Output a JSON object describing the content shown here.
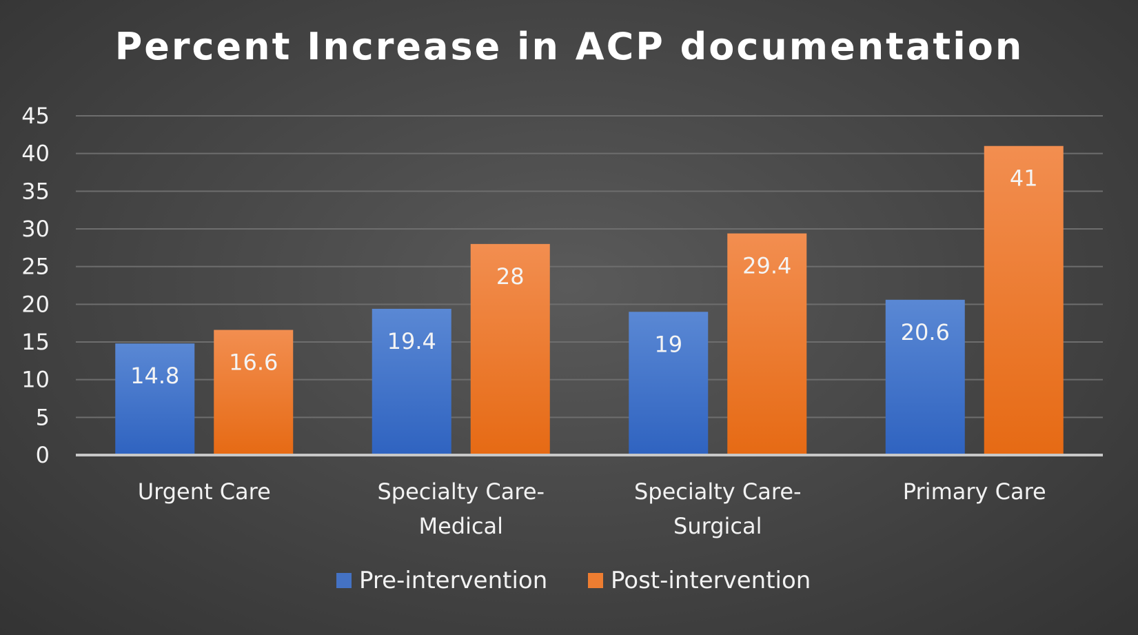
{
  "chart_data": {
    "type": "bar",
    "title": "Percent Increase in ACP documentation",
    "xlabel": "",
    "ylabel": "",
    "ylim": [
      0,
      45
    ],
    "yticks": [
      0,
      5,
      10,
      15,
      20,
      25,
      30,
      35,
      40,
      45
    ],
    "grid": true,
    "legend_position": "bottom",
    "categories": [
      [
        "Urgent Care"
      ],
      [
        "Specialty Care-",
        "Medical"
      ],
      [
        "Specialty Care-",
        "Surgical"
      ],
      [
        "Primary Care"
      ]
    ],
    "series": [
      {
        "name": "Pre-intervention",
        "values": [
          14.8,
          19.4,
          19,
          20.6
        ],
        "color": "#4472C4"
      },
      {
        "name": "Post-intervention",
        "values": [
          16.6,
          28,
          29.4,
          41
        ],
        "color": "#ED7D31"
      }
    ]
  }
}
